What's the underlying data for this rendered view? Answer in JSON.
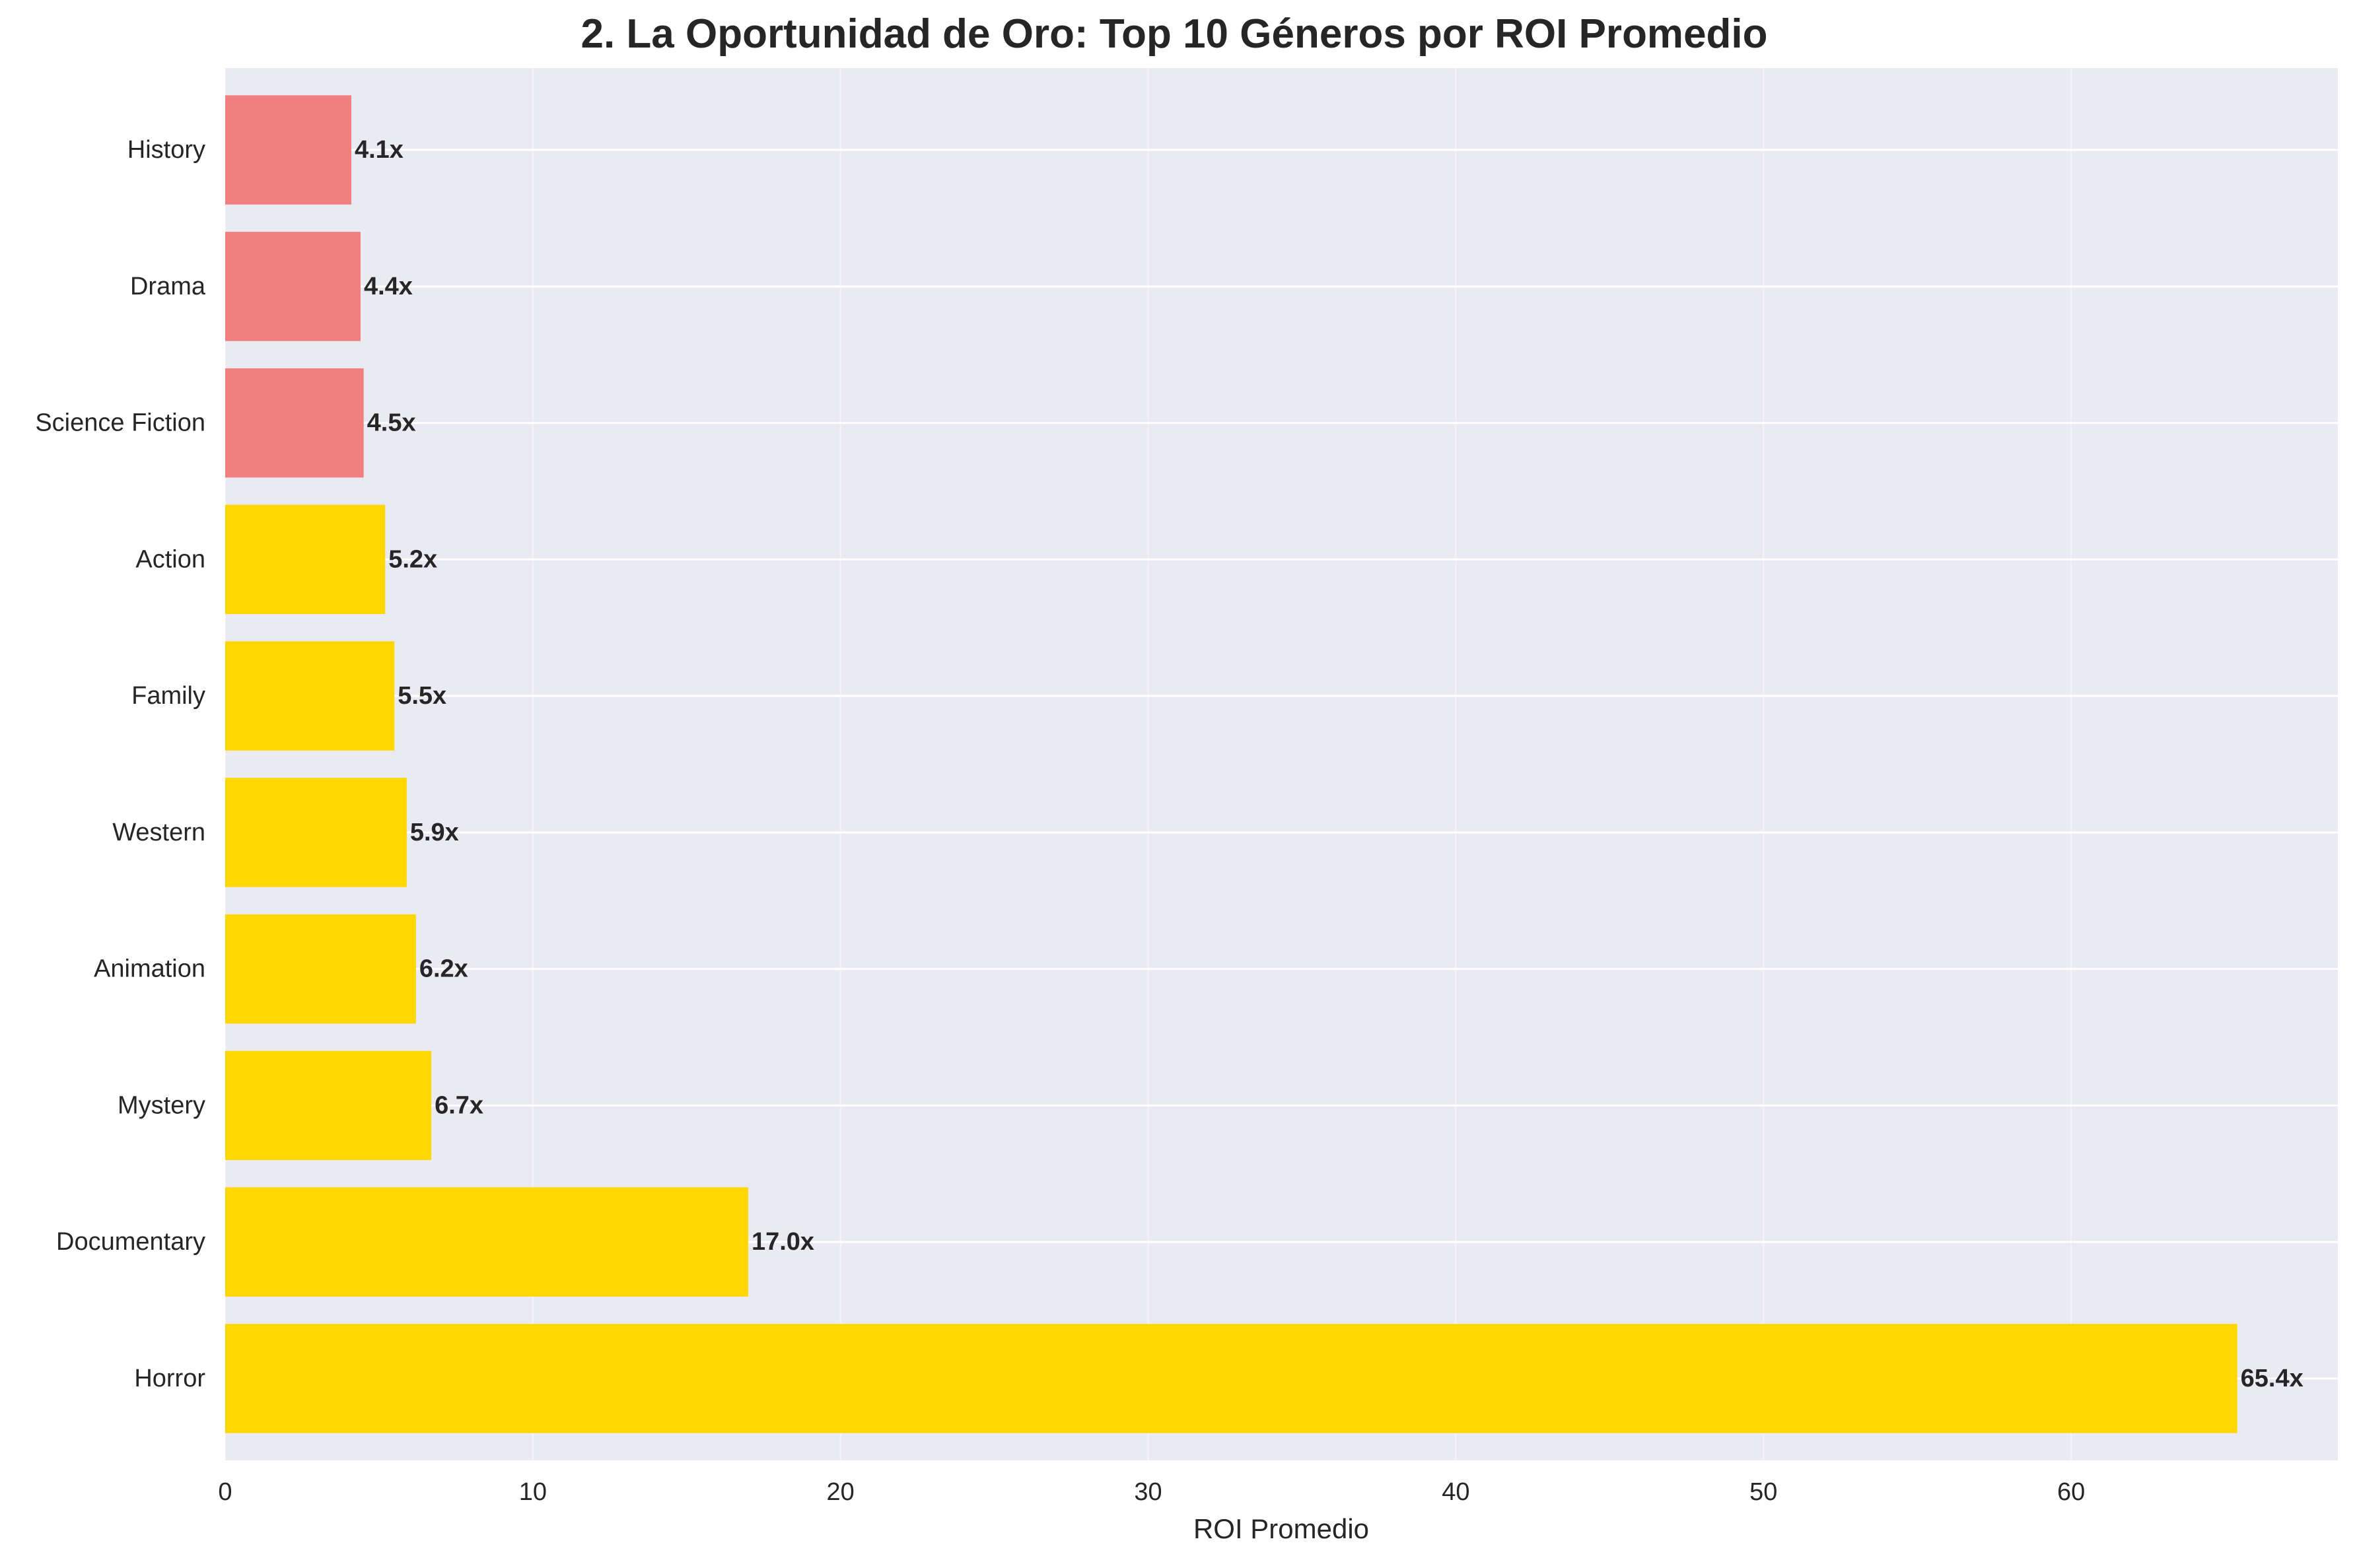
{
  "chart_data": {
    "type": "bar",
    "orientation": "horizontal",
    "title": "2. La Oportunidad de Oro: Top 10 Géneros por ROI Promedio",
    "xlabel": "ROI Promedio",
    "ylabel": "",
    "xlim": [
      0,
      68.67
    ],
    "xticks": [
      0,
      10,
      20,
      30,
      40,
      50,
      60
    ],
    "grid": true,
    "categories": [
      "Horror",
      "Documentary",
      "Mystery",
      "Animation",
      "Western",
      "Family",
      "Action",
      "Science Fiction",
      "Drama",
      "History"
    ],
    "values": [
      65.4,
      17.0,
      6.7,
      6.2,
      5.9,
      5.5,
      5.2,
      4.5,
      4.4,
      4.1
    ],
    "value_labels": [
      "65.4x",
      "17.0x",
      "6.7x",
      "6.2x",
      "5.9x",
      "5.5x",
      "5.2x",
      "4.5x",
      "4.4x",
      "4.1x"
    ],
    "bar_colors": [
      "#FFD700",
      "#FFD700",
      "#FFD700",
      "#FFD700",
      "#FFD700",
      "#FFD700",
      "#FFD700",
      "#F08080",
      "#F08080",
      "#F08080"
    ],
    "background_color": "#EAEAF2",
    "grid_color": "#FFFFFF"
  }
}
